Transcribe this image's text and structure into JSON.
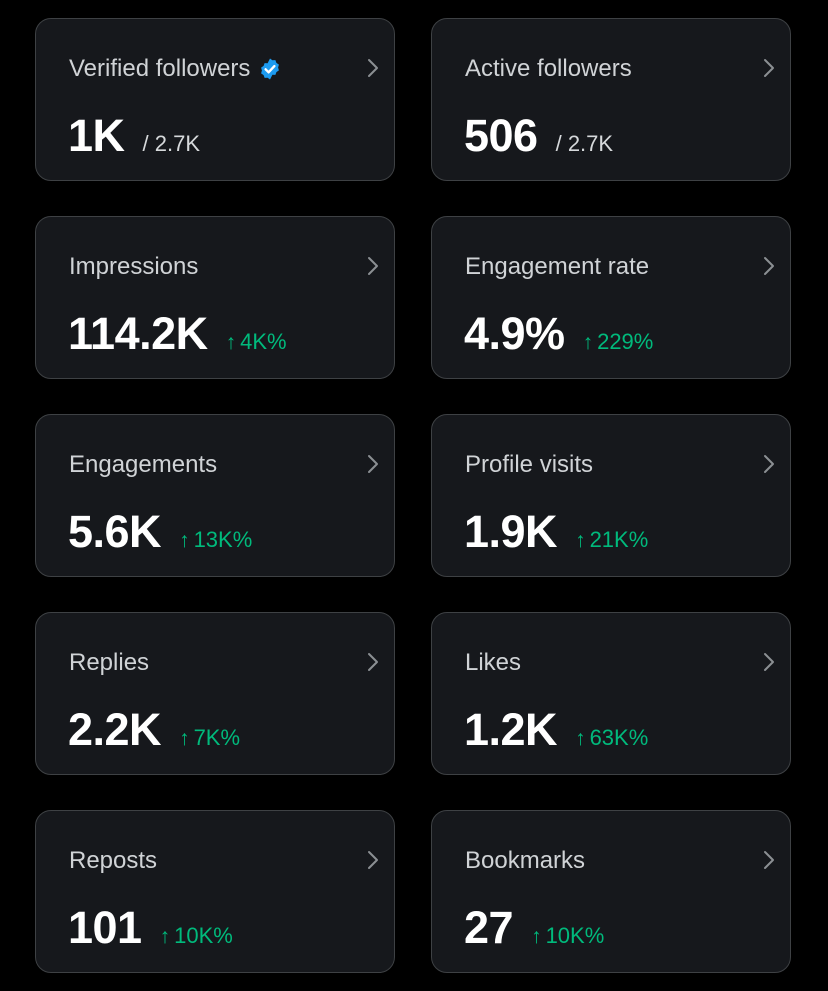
{
  "colors": {
    "background": "#000000",
    "card_background": "#16181c",
    "card_border": "#3e4144",
    "title_text": "#d0d3d6",
    "value_text": "#ffffff",
    "positive_change": "#00ba7c",
    "verified_badge": "#1d9bf0"
  },
  "cards": [
    {
      "title": "Verified followers",
      "icon": "verified-badge-icon",
      "value": "1K",
      "total": "/ 2.7K"
    },
    {
      "title": "Active followers",
      "value": "506",
      "total": "/ 2.7K"
    },
    {
      "title": "Impressions",
      "value": "114.2K",
      "change": "4K%",
      "change_arrow": "↑"
    },
    {
      "title": "Engagement rate",
      "value": "4.9%",
      "change": "229%",
      "change_arrow": "↑"
    },
    {
      "title": "Engagements",
      "value": "5.6K",
      "change": "13K%",
      "change_arrow": "↑"
    },
    {
      "title": "Profile visits",
      "value": "1.9K",
      "change": "21K%",
      "change_arrow": "↑"
    },
    {
      "title": "Replies",
      "value": "2.2K",
      "change": "7K%",
      "change_arrow": "↑"
    },
    {
      "title": "Likes",
      "value": "1.2K",
      "change": "63K%",
      "change_arrow": "↑"
    },
    {
      "title": "Reposts",
      "value": "101",
      "change": "10K%",
      "change_arrow": "↑"
    },
    {
      "title": "Bookmarks",
      "value": "27",
      "change": "10K%",
      "change_arrow": "↑"
    }
  ]
}
